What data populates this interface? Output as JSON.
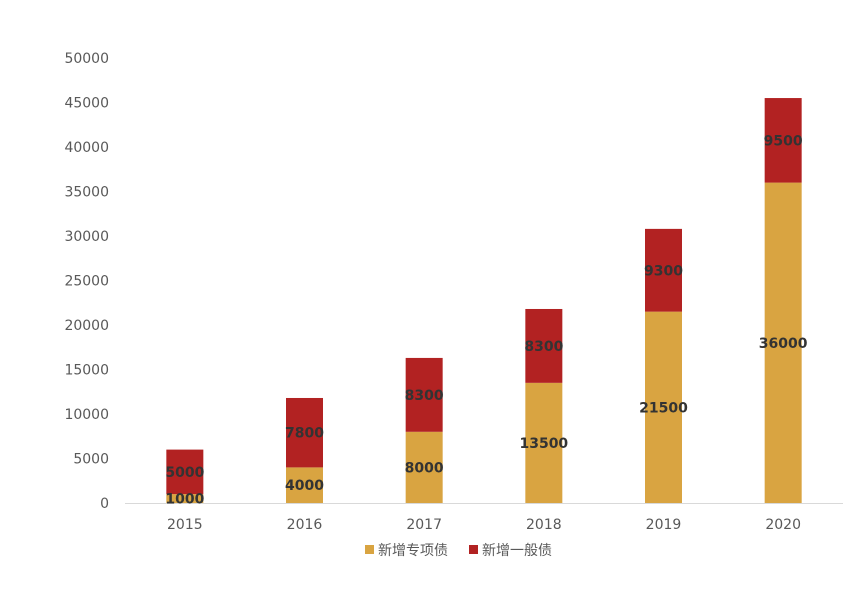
{
  "chart_data": {
    "type": "bar",
    "stacked": true,
    "categories": [
      "2015",
      "2016",
      "2017",
      "2018",
      "2019",
      "2020"
    ],
    "series": [
      {
        "name": "新增专项债",
        "values": [
          1000,
          4000,
          8000,
          13500,
          21500,
          36000
        ],
        "color": "#D9A441"
      },
      {
        "name": "新增一般债",
        "values": [
          5000,
          7800,
          8300,
          8300,
          9300,
          9500
        ],
        "color": "#B22222"
      }
    ],
    "ylim": [
      0,
      50000
    ],
    "yticks": [
      "0",
      "5000",
      "10000",
      "15000",
      "20000",
      "25000",
      "30000",
      "35000",
      "40000",
      "45000",
      "50000"
    ],
    "grid": false,
    "legend_position": "bottom",
    "data_labels": true
  }
}
